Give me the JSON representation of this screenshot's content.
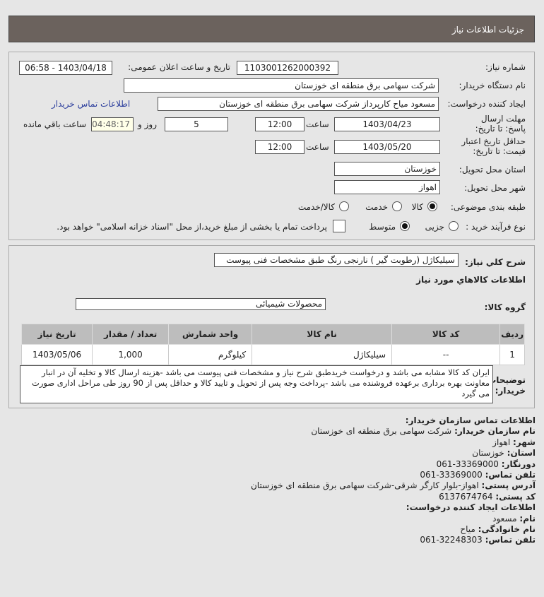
{
  "header": {
    "title": "جزئیات اطلاعات نیاز"
  },
  "form": {
    "need_number_label": "شماره نیاز:",
    "need_number": "1103001262000392",
    "announce_label": "تاریخ و ساعت اعلان عمومی:",
    "announce_value": "1403/04/18 - 06:58",
    "buyer_label": "نام دستگاه خریدار:",
    "buyer": "شرکت سهامی برق منطقه ای خوزستان",
    "creator_label": "ایجاد کننده درخواست:",
    "creator": "مسعود میاح کارپرداز شرکت سهامی برق منطقه ای خوزستان",
    "contact_link": "اطلاعات تماس خریدار",
    "deadline_label": "مهلت ارسال پاسخ: تا تاریخ:",
    "deadline_date": "1403/04/23",
    "time_label": "ساعت",
    "deadline_time": "12:00",
    "days": "5",
    "days_label": "روز و",
    "remaining": "04:48:17",
    "remaining_label": "ساعت باقي مانده",
    "validity_label": "حداقل تاریخ اعتبار قیمت: تا تاریخ:",
    "validity_date": "1403/05/20",
    "validity_time": "12:00",
    "province_label": "استان محل تحویل:",
    "province": "خوزستان",
    "city_label": "شهر محل تحویل:",
    "city": "اهواز",
    "category_label": "طبقه بندی موضوعی:",
    "category_options": [
      "کالا",
      "خدمت",
      "کالا/خدمت"
    ],
    "category_selected": "کالا",
    "process_label": "نوع فرآیند خرید :",
    "process_options": [
      "جزیی",
      "متوسط"
    ],
    "process_selected": "متوسط",
    "payment_note": "پرداخت تمام یا بخشی از مبلغ خرید،از محل \"اسناد خزانه اسلامی\" خواهد بود."
  },
  "details": {
    "summary_label": "شرح کلي نياز:",
    "summary": "سیلیکاژل (رطوبت گیر ) نارنجی رنگ طبق مشخصات فنی پیوست",
    "goods_title": "اطلاعات کالاهاي مورد نياز",
    "group_label": "گروه کالا:",
    "group": "محصولات شیمیائی",
    "table": {
      "headers": [
        "ردیف",
        "کد کالا",
        "نام کالا",
        "واحد شمارش",
        "تعداد / مقدار",
        "تاریخ نیاز"
      ],
      "rows": [
        [
          "1",
          "--",
          "سیلیکاژل",
          "کیلوگرم",
          "1,000",
          "1403/05/06"
        ]
      ]
    },
    "notes_label": "توضیحات خریدار:",
    "notes": "ایران کد کالا مشابه می باشد و درخواست خریدطبق شرح نیاز و مشخصات فنی پیوست می باشد -هزینه ارسال کالا و تخلیه آن در انبار معاونت بهره برداری برعهده فروشنده می باشد -پرداخت وجه پس از تحویل و تایید کالا و حداقل پس از 90 روز طی مراحل اداری صورت می گیرد"
  },
  "contact": {
    "title": "اطلاعات تماس سازمان خریدار:",
    "items": [
      {
        "label": "نام سازمان خریدار:",
        "value": "شرکت سهامی برق منطقه ای خوزستان"
      },
      {
        "label": "شهر:",
        "value": "اهواز"
      },
      {
        "label": "استان:",
        "value": "خوزستان"
      },
      {
        "label": "دورنگار:",
        "value": "33369000-061"
      },
      {
        "label": "تلفن تماس:",
        "value": "33369000-061"
      },
      {
        "label": "آدرس پستی:",
        "value": "اهواز-بلوار کارگر شرقی-شرکت سهامی برق منطقه ای خوزستان"
      },
      {
        "label": "کد پستی:",
        "value": "6137674764"
      }
    ],
    "creator_title": "اطلاعات ایجاد کننده درخواست:",
    "creator_items": [
      {
        "label": "نام:",
        "value": "مسعود"
      },
      {
        "label": "نام خانوادگی:",
        "value": "میاح"
      },
      {
        "label": "تلفن تماس:",
        "value": "32248303-061"
      }
    ]
  }
}
